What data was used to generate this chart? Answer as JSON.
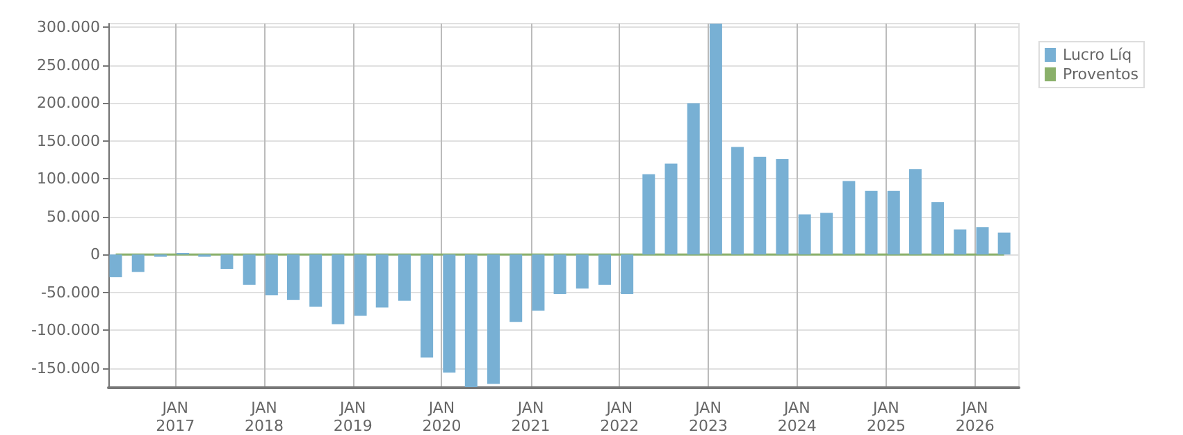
{
  "chart_data": {
    "type": "bar",
    "x": [
      "2016-05",
      "2016-08",
      "2016-11",
      "2017-02",
      "2017-05",
      "2017-08",
      "2017-11",
      "2018-02",
      "2018-05",
      "2018-08",
      "2018-11",
      "2019-02",
      "2019-05",
      "2019-08",
      "2019-11",
      "2020-02",
      "2020-05",
      "2020-08",
      "2020-11",
      "2021-02",
      "2021-05",
      "2021-08",
      "2021-11",
      "2022-02",
      "2022-05",
      "2022-08",
      "2022-11",
      "2023-02",
      "2023-05",
      "2023-08",
      "2023-11",
      "2024-02",
      "2024-05",
      "2024-08",
      "2024-11",
      "2025-02",
      "2025-05",
      "2025-08",
      "2025-11",
      "2026-02",
      "2026-05"
    ],
    "series": [
      {
        "name": "Lucro Líq",
        "color": "#78b0d4",
        "values": [
          -30000,
          -23000,
          -3000,
          2000,
          -3000,
          -19000,
          -40000,
          -54000,
          -60000,
          -69000,
          -92000,
          -81000,
          -70000,
          -61000,
          -136000,
          -156000,
          -175000,
          -171000,
          -89000,
          -74000,
          -52000,
          -45000,
          -40000,
          -52000,
          106000,
          120000,
          200000,
          305000,
          142000,
          129000,
          126000,
          53000,
          55000,
          97000,
          84000,
          84000,
          113000,
          69000,
          33000,
          36000,
          29000
        ]
      },
      {
        "name": "Proventos",
        "type": "line",
        "color": "#8ab06a",
        "values": [
          0,
          0,
          0,
          0,
          0,
          0,
          0,
          0,
          0,
          0,
          0,
          0,
          0,
          0,
          0,
          0,
          0,
          0,
          0,
          0,
          0,
          0,
          0,
          0,
          0,
          0,
          0,
          0,
          0,
          0,
          0,
          0,
          0,
          0,
          0,
          0,
          0,
          0,
          0,
          0,
          0
        ]
      }
    ],
    "xlim": [
      "2016-04",
      "2026-07"
    ],
    "xticks": [
      {
        "value": "2017-01",
        "label": "JAN\n2017"
      },
      {
        "value": "2018-01",
        "label": "JAN\n2018"
      },
      {
        "value": "2019-01",
        "label": "JAN\n2019"
      },
      {
        "value": "2020-01",
        "label": "JAN\n2020"
      },
      {
        "value": "2021-01",
        "label": "JAN\n2021"
      },
      {
        "value": "2022-01",
        "label": "JAN\n2022"
      },
      {
        "value": "2023-01",
        "label": "JAN\n2023"
      },
      {
        "value": "2024-01",
        "label": "JAN\n2024"
      },
      {
        "value": "2025-01",
        "label": "JAN\n2025"
      },
      {
        "value": "2026-01",
        "label": "JAN\n2026"
      }
    ],
    "ylim": [
      -176000,
      305000
    ],
    "yticks": [
      {
        "value": -150000,
        "label": "-150.000"
      },
      {
        "value": -100000,
        "label": "-100.000"
      },
      {
        "value": -50000,
        "label": "-50.000"
      },
      0,
      {
        "value": 50000,
        "label": "50.000"
      },
      {
        "value": 100000,
        "label": "100.000"
      },
      {
        "value": 150000,
        "label": "150.000"
      },
      {
        "value": 200000,
        "label": "200.000"
      },
      {
        "value": 250000,
        "label": "250.000"
      },
      {
        "value": 300000,
        "label": "300.000"
      }
    ],
    "grid": true,
    "legend": "top right"
  }
}
